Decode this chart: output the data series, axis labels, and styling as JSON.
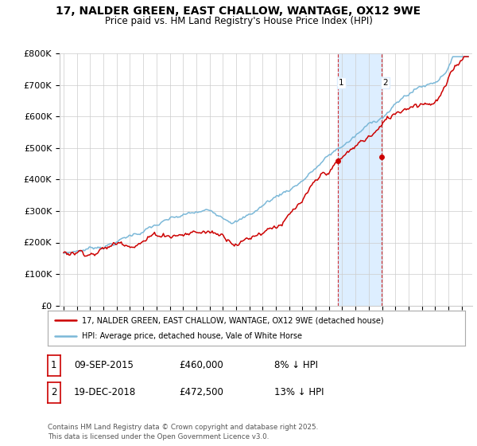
{
  "title_line1": "17, NALDER GREEN, EAST CHALLOW, WANTAGE, OX12 9WE",
  "title_line2": "Price paid vs. HM Land Registry's House Price Index (HPI)",
  "ylim": [
    0,
    800000
  ],
  "yticks": [
    0,
    100000,
    200000,
    300000,
    400000,
    500000,
    600000,
    700000,
    800000
  ],
  "ytick_labels": [
    "£0",
    "£100K",
    "£200K",
    "£300K",
    "£400K",
    "£500K",
    "£600K",
    "£700K",
    "£800K"
  ],
  "hpi_color": "#7bb8d8",
  "price_color": "#cc0000",
  "highlight_bg": "#ddeeff",
  "sale1_price": 460000,
  "sale1_year": 2015.69,
  "sale2_price": 472500,
  "sale2_year": 2018.97,
  "legend_property": "17, NALDER GREEN, EAST CHALLOW, WANTAGE, OX12 9WE (detached house)",
  "legend_hpi": "HPI: Average price, detached house, Vale of White Horse",
  "table_row1": [
    "1",
    "09-SEP-2015",
    "£460,000",
    "8% ↓ HPI"
  ],
  "table_row2": [
    "2",
    "19-DEC-2018",
    "£472,500",
    "13% ↓ HPI"
  ],
  "footer": "Contains HM Land Registry data © Crown copyright and database right 2025.\nThis data is licensed under the Open Government Licence v3.0.",
  "bg_color": "#ffffff",
  "grid_color": "#cccccc",
  "xlim_left": 1994.7,
  "xlim_right": 2025.8
}
